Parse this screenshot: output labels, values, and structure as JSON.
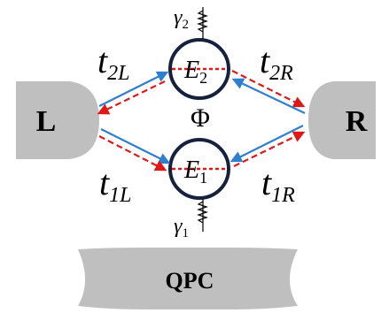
{
  "leads": {
    "left_label": "L",
    "right_label": "R",
    "qpc_label": "QPC"
  },
  "dots": {
    "top_energy": "E",
    "top_energy_sub": "2",
    "bottom_energy": "E",
    "bottom_energy_sub": "1"
  },
  "couplings": {
    "t2L": "t",
    "t2L_sub": "2L",
    "t2R": "t",
    "t2R_sub": "2R",
    "t1L": "t",
    "t1L_sub": "1L",
    "t1R": "t",
    "t1R_sub": "1R"
  },
  "dephasing": {
    "gamma2": "γ",
    "gamma2_sub": "2",
    "gamma1": "γ",
    "gamma1_sub": "1"
  },
  "flux_label": "Φ",
  "colors": {
    "forward_arrow": "#2f7fd0",
    "backward_arrow": "#e01818",
    "lead_fill": "#bfbfbf",
    "dot_ring": "#16213e"
  }
}
